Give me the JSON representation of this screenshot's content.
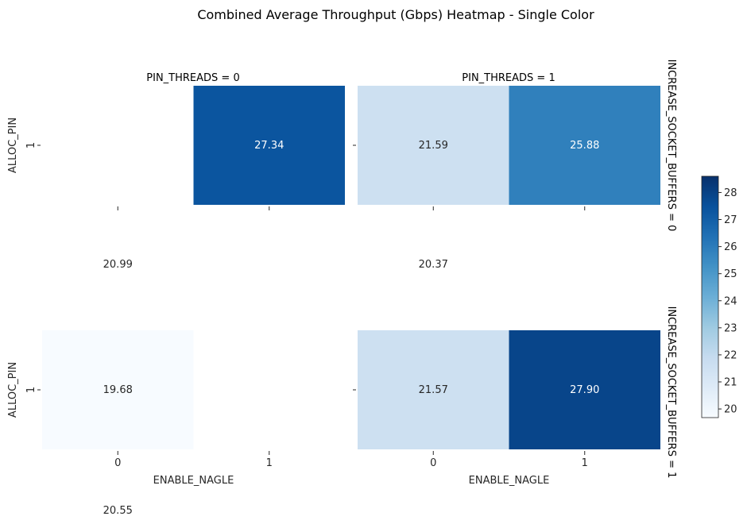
{
  "chart_data": {
    "type": "heatmap",
    "title": "Combined Average Throughput (Gbps) Heatmap - Single Color",
    "xlabel": "ENABLE_NAGLE",
    "ylabel": "ALLOC_PIN",
    "x_categories": [
      "0",
      "1"
    ],
    "y_tick_label": "1",
    "column_facets": [
      "PIN_THREADS = 0",
      "PIN_THREADS = 1"
    ],
    "row_facets": [
      "INCREASE_SOCKET_BUFFERS = 0",
      "INCREASE_SOCKET_BUFFERS = 1"
    ],
    "color_scale": {
      "colormap": "Blues",
      "vmin": 19.68,
      "vmax": 28.6,
      "ticks": [
        "20",
        "21",
        "22",
        "23",
        "24",
        "25",
        "26",
        "27",
        "28"
      ],
      "low_color": "#f7fbff",
      "high_color": "#08306b"
    },
    "panels": [
      {
        "row": 0,
        "col": 0,
        "cells": [
          {
            "x": "0",
            "value": null
          },
          {
            "x": "1",
            "value": 27.34,
            "label": "27.34"
          }
        ],
        "outside_labels": [
          {
            "x": "0",
            "value": 20.99,
            "label": "20.99"
          }
        ]
      },
      {
        "row": 0,
        "col": 1,
        "cells": [
          {
            "x": "0",
            "value": 21.59,
            "label": "21.59"
          },
          {
            "x": "1",
            "value": 25.88,
            "label": "25.88"
          }
        ],
        "outside_labels": [
          {
            "x": "0",
            "value": 20.37,
            "label": "20.37"
          }
        ]
      },
      {
        "row": 1,
        "col": 0,
        "cells": [
          {
            "x": "0",
            "value": 19.68,
            "label": "19.68"
          },
          {
            "x": "1",
            "value": null
          }
        ],
        "outside_labels": [
          {
            "x": "0",
            "value": 20.55,
            "label": "20.55"
          }
        ]
      },
      {
        "row": 1,
        "col": 1,
        "cells": [
          {
            "x": "0",
            "value": 21.57,
            "label": "21.57"
          },
          {
            "x": "1",
            "value": 27.9,
            "label": "27.90"
          }
        ],
        "outside_labels": []
      }
    ]
  }
}
